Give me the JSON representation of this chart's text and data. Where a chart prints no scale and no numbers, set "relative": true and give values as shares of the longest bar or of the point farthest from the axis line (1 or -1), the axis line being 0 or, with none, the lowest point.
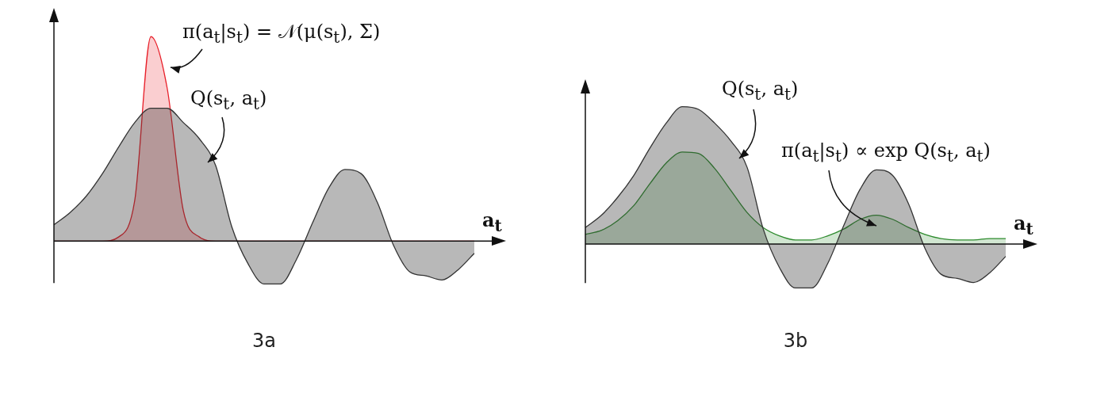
{
  "chart_data": [
    {
      "type": "area",
      "title": "3a",
      "xlabel": "a$_{t}$",
      "relative": true,
      "legend": false,
      "categories": [
        null,
        null,
        null,
        null,
        null,
        null,
        null,
        null,
        null,
        null,
        null,
        null,
        null,
        null,
        null,
        null,
        null,
        null,
        null,
        null,
        null,
        null,
        null,
        null,
        null,
        null,
        null
      ],
      "annotations": [
        "π(a$_{t}$|s$_{t}$) = 𝒩(μ(s$_{t}$), Σ)",
        "Q(s$_{t}$, a$_{t}$)"
      ],
      "series": [
        {
          "color": "#333333",
          "values": [
            0.08,
            0.14,
            0.22,
            0.33,
            0.46,
            0.58,
            0.65,
            0.65,
            0.58,
            0.5,
            0.37,
            0.07,
            -0.11,
            -0.21,
            -0.21,
            -0.09,
            0.09,
            0.26,
            0.35,
            0.33,
            0.19,
            -0.02,
            -0.15,
            -0.17,
            -0.19,
            -0.14,
            -0.06
          ]
        },
        {
          "color": "#e8202a",
          "values": [
            0,
            0,
            0,
            0,
            0.02,
            0.2,
            1,
            0.75,
            0.15,
            0.02,
            0,
            0,
            0,
            0,
            0,
            0,
            0,
            0,
            0,
            0,
            0,
            0,
            0,
            0,
            0,
            0,
            0
          ]
        }
      ]
    },
    {
      "type": "area",
      "title": "3b",
      "xlabel": "a$_{t}$",
      "relative": true,
      "legend": false,
      "categories": [
        null,
        null,
        null,
        null,
        null,
        null,
        null,
        null,
        null,
        null,
        null,
        null,
        null,
        null,
        null,
        null,
        null,
        null,
        null,
        null,
        null,
        null,
        null,
        null,
        null,
        null,
        null
      ],
      "annotations": [
        "Q(s$_{t}$, a$_{t}$)",
        "π(a$_{t}$|s$_{t}$) ∝ exp Q(s$_{t}$, a$_{t}$)"
      ],
      "series": [
        {
          "color": "#333333",
          "values": [
            0.12,
            0.21,
            0.34,
            0.5,
            0.7,
            0.88,
            1,
            0.98,
            0.88,
            0.75,
            0.56,
            0.11,
            -0.17,
            -0.32,
            -0.32,
            -0.14,
            0.14,
            0.4,
            0.54,
            0.5,
            0.29,
            -0.03,
            -0.22,
            -0.25,
            -0.28,
            -0.21,
            -0.09
          ]
        },
        {
          "color": "#2e8b2e",
          "values": [
            0.07,
            0.1,
            0.17,
            0.28,
            0.44,
            0.59,
            0.67,
            0.66,
            0.55,
            0.39,
            0.23,
            0.12,
            0.06,
            0.03,
            0.03,
            0.06,
            0.11,
            0.18,
            0.21,
            0.18,
            0.12,
            0.07,
            0.04,
            0.03,
            0.03,
            0.04,
            0.04
          ]
        }
      ]
    }
  ]
}
